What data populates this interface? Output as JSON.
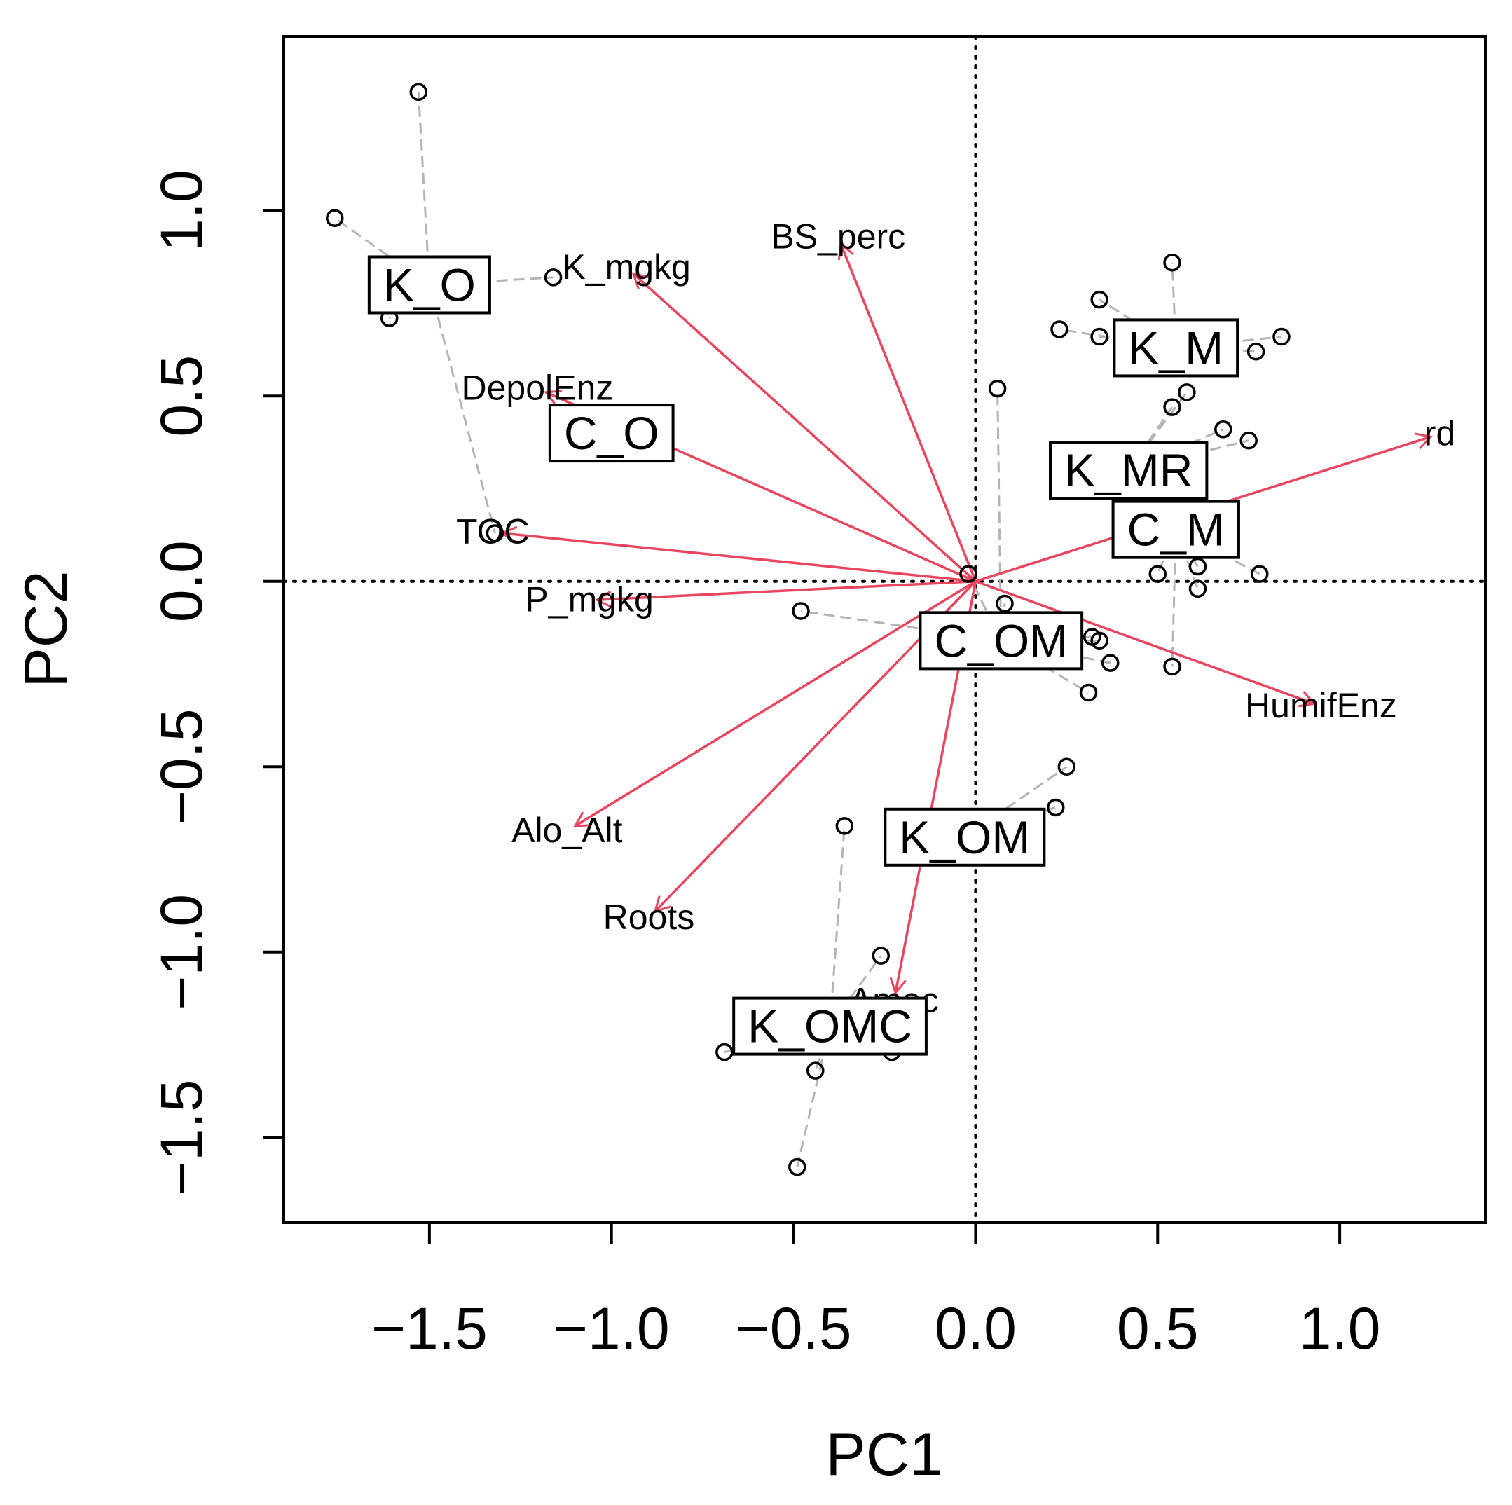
{
  "chart_data": {
    "type": "scatter",
    "subtype": "ordination-biplot",
    "xlabel": "PC1",
    "ylabel": "PC2",
    "xlim": [
      -1.9,
      1.4
    ],
    "ylim": [
      -1.73,
      1.47
    ],
    "xticks": [
      -1.5,
      -1.0,
      -0.5,
      0.0,
      0.5,
      1.0
    ],
    "yticks": [
      -1.5,
      -1.0,
      -0.5,
      0.0,
      0.5,
      1.0
    ],
    "x_tick_labels": [
      "−1.5",
      "−1.0",
      "−0.5",
      "0.0",
      "0.5",
      "1.0"
    ],
    "y_tick_labels": [
      "−1.5",
      "−1.0",
      "−0.5",
      "0.0",
      "0.5",
      "1.0"
    ],
    "reference_lines": {
      "x": 0,
      "y": 0,
      "style": "dotted"
    },
    "colors": {
      "arrow": "#e8455f",
      "spider": "#b4b4b4",
      "point": "#000000",
      "axis": "#000000"
    },
    "groups": [
      {
        "name": "K_O",
        "centroid": [
          -1.5,
          0.8
        ]
      },
      {
        "name": "C_O",
        "centroid": [
          -1.0,
          0.4
        ]
      },
      {
        "name": "K_M",
        "centroid": [
          0.55,
          0.63
        ]
      },
      {
        "name": "K_MR",
        "centroid": [
          0.42,
          0.3
        ]
      },
      {
        "name": "C_M",
        "centroid": [
          0.55,
          0.14
        ]
      },
      {
        "name": "C_OM",
        "centroid": [
          0.07,
          -0.16
        ]
      },
      {
        "name": "K_OM",
        "centroid": [
          -0.03,
          -0.69
        ]
      },
      {
        "name": "K_OMC",
        "centroid": [
          -0.4,
          -1.2
        ]
      }
    ],
    "points": [
      {
        "group": "K_O",
        "x": -1.53,
        "y": 1.32
      },
      {
        "group": "K_O",
        "x": -1.76,
        "y": 0.98
      },
      {
        "group": "K_O",
        "x": -1.16,
        "y": 0.82
      },
      {
        "group": "K_O",
        "x": -1.61,
        "y": 0.71
      },
      {
        "group": "K_O",
        "x": -1.32,
        "y": 0.13
      },
      {
        "group": "K_M",
        "x": 0.54,
        "y": 0.86
      },
      {
        "group": "K_M",
        "x": 0.34,
        "y": 0.76
      },
      {
        "group": "K_M",
        "x": 0.23,
        "y": 0.68
      },
      {
        "group": "K_M",
        "x": 0.34,
        "y": 0.66
      },
      {
        "group": "K_M",
        "x": 0.84,
        "y": 0.66
      },
      {
        "group": "K_M",
        "x": 0.77,
        "y": 0.62
      },
      {
        "group": "K_MR",
        "x": 0.58,
        "y": 0.51
      },
      {
        "group": "K_MR",
        "x": 0.54,
        "y": 0.47
      },
      {
        "group": "K_MR",
        "x": 0.68,
        "y": 0.41
      },
      {
        "group": "K_MR",
        "x": 0.75,
        "y": 0.38
      },
      {
        "group": "C_OM",
        "x": 0.06,
        "y": 0.52
      },
      {
        "group": "C_M",
        "x": 0.78,
        "y": 0.02
      },
      {
        "group": "C_M",
        "x": 0.5,
        "y": 0.02
      },
      {
        "group": "C_M",
        "x": 0.61,
        "y": 0.04
      },
      {
        "group": "C_M",
        "x": 0.61,
        "y": -0.02
      },
      {
        "group": "C_M",
        "x": 0.54,
        "y": -0.23
      },
      {
        "group": "C_OM",
        "x": -0.02,
        "y": 0.02
      },
      {
        "group": "C_OM",
        "x": 0.08,
        "y": -0.06
      },
      {
        "group": "C_OM",
        "x": -0.48,
        "y": -0.08
      },
      {
        "group": "C_OM",
        "x": 0.32,
        "y": -0.15
      },
      {
        "group": "C_OM",
        "x": 0.34,
        "y": -0.16
      },
      {
        "group": "C_OM",
        "x": 0.37,
        "y": -0.22
      },
      {
        "group": "C_OM",
        "x": 0.31,
        "y": -0.3
      },
      {
        "group": "K_OM",
        "x": 0.25,
        "y": -0.5
      },
      {
        "group": "K_OM",
        "x": 0.22,
        "y": -0.61
      },
      {
        "group": "K_OMC",
        "x": -0.36,
        "y": -0.66
      },
      {
        "group": "K_OMC",
        "x": -0.26,
        "y": -1.01
      },
      {
        "group": "K_OMC",
        "x": -0.69,
        "y": -1.27
      },
      {
        "group": "K_OMC",
        "x": -0.23,
        "y": -1.27
      },
      {
        "group": "K_OMC",
        "x": -0.44,
        "y": -1.32
      },
      {
        "group": "K_OMC",
        "x": -0.49,
        "y": -1.58
      }
    ],
    "vectors": [
      {
        "label": "K_mgkg",
        "x": -0.94,
        "y": 0.83
      },
      {
        "label": "BS_perc",
        "x": -0.37,
        "y": 0.91
      },
      {
        "label": "DepolEnz",
        "x": -1.18,
        "y": 0.51
      },
      {
        "label": "TOC",
        "x": -1.3,
        "y": 0.13
      },
      {
        "label": "P_mgkg",
        "x": -1.04,
        "y": -0.05
      },
      {
        "label": "rd",
        "x": 1.25,
        "y": 0.39
      },
      {
        "label": "HumifEnz",
        "x": 0.93,
        "y": -0.33
      },
      {
        "label": "Alo_Alt",
        "x": -1.1,
        "y": -0.66
      },
      {
        "label": "Roots",
        "x": -0.88,
        "y": -0.89
      },
      {
        "label": "Amec",
        "x": -0.22,
        "y": -1.11
      }
    ]
  }
}
